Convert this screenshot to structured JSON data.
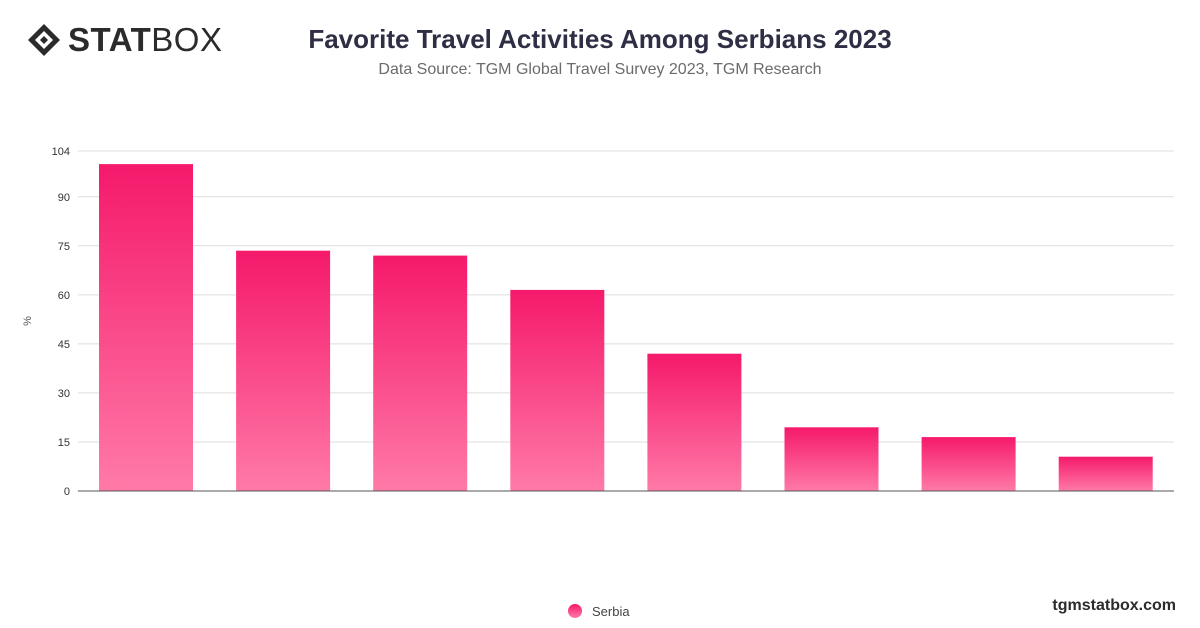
{
  "logo": {
    "word_bold": "STAT",
    "word_light": "BOX"
  },
  "header": {
    "title": "Favorite Travel Activities Among Serbians 2023",
    "subtitle": "Data Source: TGM Global Travel Survey 2023, TGM Research"
  },
  "footer": {
    "site": "tgmstatbox.com"
  },
  "colors": {
    "bar_top": "#f5196b",
    "bar_bottom": "#ff7aa8",
    "grid": "#dddddd",
    "axis": "#555555"
  },
  "chart_data": {
    "type": "bar",
    "title": "Favorite Travel Activities Among Serbians 2023",
    "ylabel": "%",
    "xlabel": "",
    "ylim": [
      0,
      104
    ],
    "yticks": [
      0,
      15,
      30,
      45,
      60,
      75,
      90,
      104
    ],
    "grid": true,
    "legend_position": "bottom-center",
    "series": [
      {
        "name": "Serbia",
        "values": [
          100,
          73.5,
          72,
          61.5,
          42,
          19.5,
          16.5,
          10.5
        ]
      }
    ]
  }
}
